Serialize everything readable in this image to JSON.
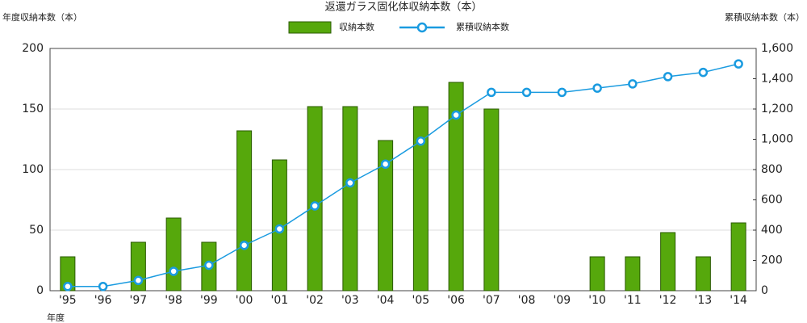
{
  "chart_data": {
    "type": "bar-line",
    "title": "返還ガラス固化体収納本数（本）",
    "y_label": "年度収納本数（本）",
    "y2_label": "累積収納本数（本）",
    "x_label": "年度",
    "categories": [
      "'95",
      "'96",
      "'97",
      "'98",
      "'99",
      "'00",
      "'01",
      "'02",
      "'03",
      "'04",
      "'05",
      "'06",
      "'07",
      "'08",
      "'09",
      "'10",
      "'11",
      "'12",
      "'13",
      "'14"
    ],
    "series": [
      {
        "name": "収納本数",
        "type": "bar",
        "color": "#56a80c",
        "values": [
          28,
          0,
          40,
          60,
          40,
          132,
          108,
          152,
          152,
          124,
          152,
          172,
          150,
          0,
          0,
          28,
          28,
          48,
          28,
          56
        ]
      },
      {
        "name": "累積収納本数",
        "type": "line",
        "axis": "y2",
        "color": "#1a9be0",
        "values": [
          28,
          28,
          68,
          128,
          168,
          300,
          408,
          560,
          712,
          836,
          988,
          1160,
          1310,
          1310,
          1310,
          1338,
          1366,
          1414,
          1442,
          1498
        ]
      }
    ],
    "ylim": [
      0,
      200
    ],
    "yticks": [
      0,
      50,
      100,
      150,
      200
    ],
    "y2lim": [
      0,
      1600
    ],
    "y2ticks": [
      0,
      200,
      400,
      600,
      800,
      {
        "value": 1000,
        "label": "1,000"
      },
      {
        "value": 1200,
        "label": "1,200"
      },
      {
        "value": 1400,
        "label": "1,400"
      },
      {
        "value": 1600,
        "label": "1,600"
      }
    ],
    "grid": true
  }
}
